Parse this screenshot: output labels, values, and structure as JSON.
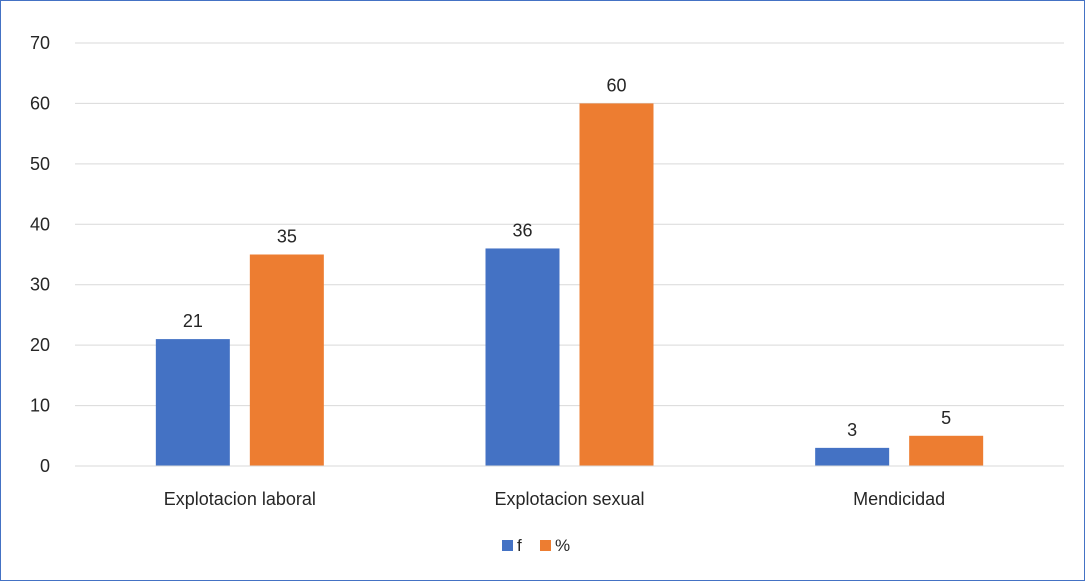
{
  "chart_data": {
    "type": "bar",
    "categories": [
      "Explotacion laboral",
      "Explotacion sexual",
      "Mendicidad"
    ],
    "series": [
      {
        "name": "f",
        "values": [
          21,
          36,
          3
        ],
        "color": "#4472c4"
      },
      {
        "name": "%",
        "values": [
          35,
          60,
          5
        ],
        "color": "#ed7d31"
      }
    ],
    "title": "",
    "xlabel": "",
    "ylabel": "",
    "ylim": [
      0,
      70
    ],
    "yticks": [
      0,
      10,
      20,
      30,
      40,
      50,
      60,
      70
    ],
    "grid": true,
    "data_labels": true,
    "legend_position": "bottom"
  }
}
